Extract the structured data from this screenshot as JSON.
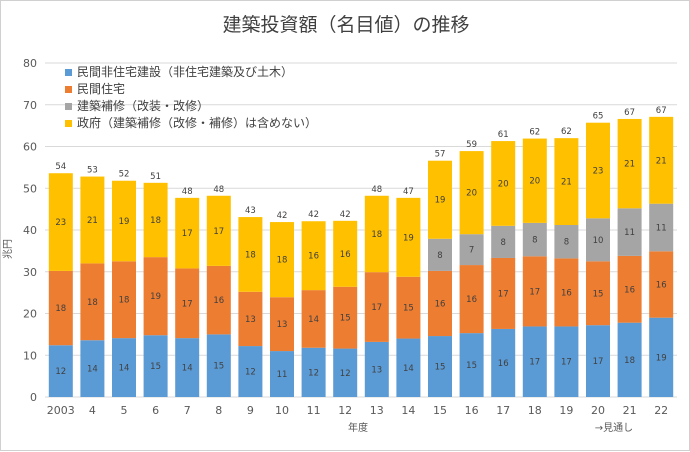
{
  "chart_data": {
    "type": "bar",
    "stacked": true,
    "title": "建築投資額（名目値）の推移",
    "ylabel": "兆円",
    "xlabel": "年度",
    "x_note": "→見通し",
    "x_note_index": 17,
    "ylim": [
      0,
      80
    ],
    "yticks": [
      0,
      10,
      20,
      30,
      40,
      50,
      60,
      70,
      80
    ],
    "grid": true,
    "legend_position": "top-left",
    "categories": [
      "2003",
      "4",
      "5",
      "6",
      "7",
      "8",
      "9",
      "10",
      "11",
      "12",
      "13",
      "14",
      "15",
      "16",
      "17",
      "18",
      "19",
      "20",
      "21",
      "22"
    ],
    "series": [
      {
        "name": "民間非住宅建設（非住宅建築及び土木）",
        "color": "#5b9bd5",
        "values": [
          12.4,
          13.6,
          14.1,
          14.8,
          14.1,
          15.0,
          12.2,
          11.0,
          11.8,
          11.6,
          13.2,
          14.0,
          14.6,
          15.3,
          16.3,
          16.9,
          16.9,
          17.2,
          17.8,
          19.0
        ]
      },
      {
        "name": "民間住宅",
        "color": "#ed7d31",
        "values": [
          17.8,
          18.4,
          18.4,
          18.7,
          16.7,
          16.4,
          13.0,
          12.9,
          13.8,
          14.8,
          16.7,
          14.8,
          15.6,
          16.3,
          17.0,
          16.8,
          16.3,
          15.3,
          16.0,
          15.9
        ]
      },
      {
        "name": "建築補修（改装・改修）",
        "color": "#a5a5a5",
        "values": [
          null,
          null,
          null,
          null,
          null,
          null,
          null,
          null,
          null,
          null,
          null,
          null,
          7.7,
          7.4,
          7.7,
          8.0,
          8.0,
          10.3,
          11.4,
          11.4
        ]
      },
      {
        "name": "政府（建築補修（改修・補修）は含めない）",
        "color": "#ffc000",
        "values": [
          23.4,
          20.8,
          19.3,
          17.8,
          16.9,
          16.8,
          17.9,
          18.0,
          16.5,
          15.8,
          18.3,
          18.9,
          18.7,
          19.9,
          20.3,
          20.2,
          20.8,
          22.9,
          21.4,
          20.8
        ]
      }
    ],
    "data_labels": [
      [
        "12",
        "14",
        "14",
        "15",
        "14",
        "15",
        "12",
        "11",
        "12",
        "12",
        "13",
        "14",
        "15",
        "15",
        "16",
        "17",
        "17",
        "17",
        "18",
        "19"
      ],
      [
        "18",
        "18",
        "18",
        "19",
        "17",
        "16",
        "13",
        "13",
        "14",
        "15",
        "17",
        "15",
        "16",
        "16",
        "17",
        "17",
        "16",
        "15",
        "16",
        "16"
      ],
      [
        "",
        "",
        "",
        "",
        "",
        "",
        "",
        "",
        "",
        "",
        "",
        "",
        "8",
        "7",
        "8",
        "8",
        "8",
        "10",
        "11",
        "11"
      ],
      [
        "23",
        "21",
        "19",
        "18",
        "17",
        "17",
        "18",
        "18",
        "16",
        "16",
        "18",
        "19",
        "19",
        "20",
        "20",
        "20",
        "21",
        "23",
        "21",
        "21"
      ]
    ],
    "totals": [
      "54",
      "53",
      "52",
      "51",
      "48",
      "48",
      "43",
      "42",
      "42",
      "42",
      "48",
      "47",
      "57",
      "59",
      "61",
      "62",
      "62",
      "65",
      "67",
      "67"
    ]
  }
}
